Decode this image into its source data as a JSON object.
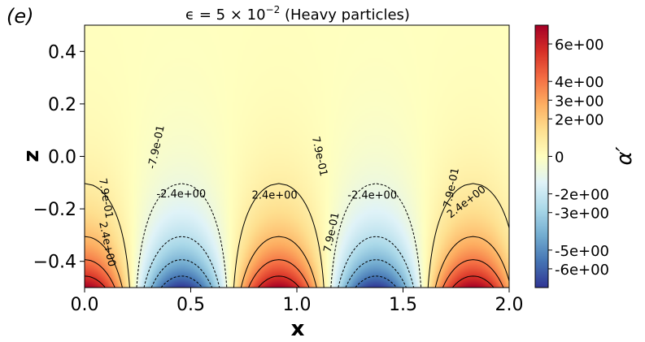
{
  "panel_label": "(e)",
  "chart_data": {
    "type": "heatmap",
    "title": "ϵ = 5 × 10⁻² (Heavy particles)",
    "title_parts": {
      "prefix": "ϵ = 5 × 10",
      "exponent": "−2",
      "suffix": " (Heavy particles)"
    },
    "xlabel": "x",
    "ylabel": "z",
    "xlim": [
      0.0,
      2.0
    ],
    "ylim": [
      -0.5,
      0.5
    ],
    "x_ticks": [
      0.0,
      0.5,
      1.0,
      1.5,
      2.0
    ],
    "x_tick_labels": [
      "0.0",
      "0.5",
      "1.0",
      "1.5",
      "2.0"
    ],
    "y_ticks": [
      0.4,
      0.2,
      0.0,
      -0.2,
      -0.4
    ],
    "y_tick_labels": [
      "0.4",
      "0.2",
      "0.0",
      "−0.2",
      "−0.4"
    ],
    "field": {
      "expression": "A * cos(2*pi*x/0.915) * exp(-k*(z+0.5))",
      "amplitude": 7.0,
      "wavelength": 0.915,
      "decay_rate": 5.5,
      "xmin": 0.0,
      "xmax": 2.0,
      "zmin": -0.5,
      "zmax": 0.5
    },
    "colorscale": "RdYlBu_r",
    "colorbar": {
      "label": "α′",
      "vmin": -7.0,
      "vmax": 7.0,
      "ticks": [
        6,
        4,
        3,
        2,
        0,
        -2,
        -3,
        -5,
        -6
      ],
      "tick_labels": [
        "6e+00",
        "4e+00",
        "3e+00",
        "2e+00",
        "0",
        "-2e+00",
        "-3e+00",
        "-5e+00",
        "-6e+00"
      ]
    },
    "contour_levels": [
      -5.5,
      -3.9,
      -2.4,
      -0.79,
      0.79,
      2.4,
      3.9,
      5.5
    ],
    "contour_labels": [
      {
        "text": "7.9e-01",
        "x": 0.098,
        "z": -0.16,
        "rotation": 80
      },
      {
        "text": "2.4e+00",
        "x": 0.105,
        "z": -0.335,
        "rotation": 78
      },
      {
        "text": "-7.9e-01",
        "x": 0.34,
        "z": 0.035,
        "rotation": -78
      },
      {
        "text": "-2.4e+00",
        "x": 0.455,
        "z": -0.145,
        "rotation": 0
      },
      {
        "text": "2.4e+00",
        "x": 0.895,
        "z": -0.15,
        "rotation": 0
      },
      {
        "text": "7.9e-01",
        "x": 1.105,
        "z": 0.0,
        "rotation": 78
      },
      {
        "text": "-2.4e+00",
        "x": 1.355,
        "z": -0.15,
        "rotation": 0
      },
      {
        "text": "7.9e-01",
        "x": 1.165,
        "z": -0.29,
        "rotation": -78
      },
      {
        "text": "7.9e-01",
        "x": 1.73,
        "z": -0.12,
        "rotation": -78
      },
      {
        "text": "2.4e+00",
        "x": 1.8,
        "z": -0.175,
        "rotation": -38
      }
    ]
  }
}
